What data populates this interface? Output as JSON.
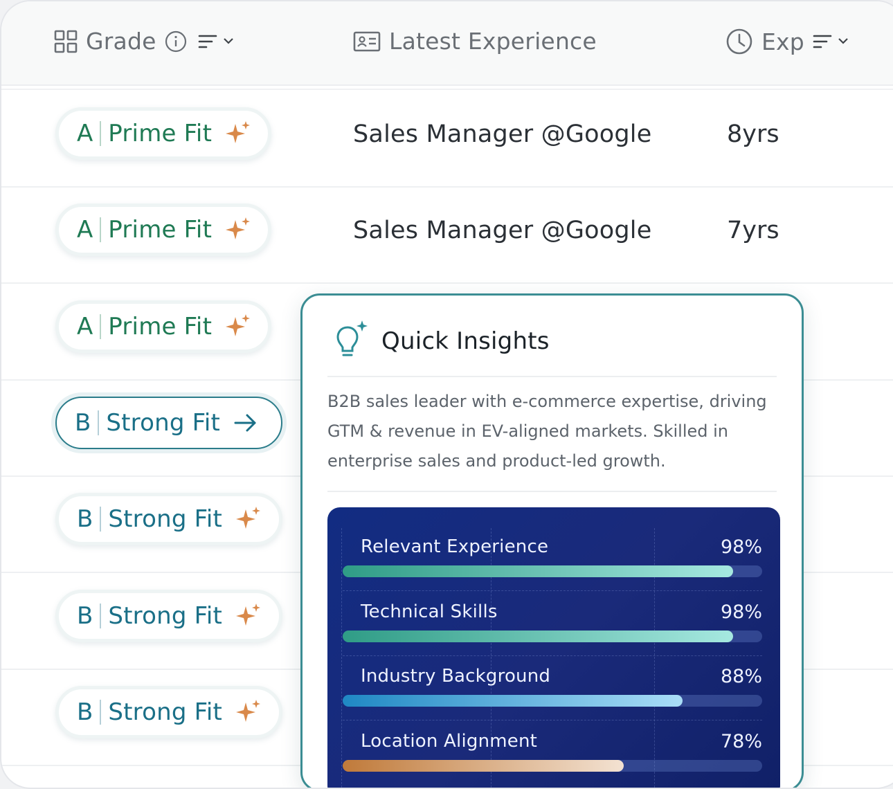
{
  "header": {
    "grade_label": "Grade",
    "experience_label": "Latest Experience",
    "exp_label": "Exp"
  },
  "rows": [
    {
      "grade": "A",
      "fit": "Prime Fit",
      "type": "prime",
      "icon": "sparkle-icon",
      "role": "Sales Manager @Google",
      "years": "8yrs"
    },
    {
      "grade": "A",
      "fit": "Prime Fit",
      "type": "prime",
      "icon": "sparkle-icon",
      "role": "Sales Manager @Google",
      "years": "7yrs"
    },
    {
      "grade": "A",
      "fit": "Prime Fit",
      "type": "prime",
      "icon": "sparkle-icon",
      "role": "",
      "years": ""
    },
    {
      "grade": "B",
      "fit": "Strong Fit",
      "type": "strong",
      "icon": "arrow-right-icon",
      "active": true,
      "role": "",
      "years": ""
    },
    {
      "grade": "B",
      "fit": "Strong Fit",
      "type": "strong",
      "icon": "sparkle-icon",
      "role": "",
      "years": ""
    },
    {
      "grade": "B",
      "fit": "Strong Fit",
      "type": "strong",
      "icon": "sparkle-icon",
      "role": "",
      "years": ""
    },
    {
      "grade": "B",
      "fit": "Strong Fit",
      "type": "strong",
      "icon": "sparkle-icon",
      "role": "",
      "years": ""
    }
  ],
  "insights": {
    "title": "Quick Insights",
    "summary": "B2B sales leader with e-commerce expertise, driving GTM & revenue in EV-aligned markets. Skilled in enterprise sales and product-led growth.",
    "metrics": [
      {
        "label": "Relevant Experience",
        "value": "98%",
        "level": 0.93,
        "colors": [
          "#2f9c86",
          "#a6e8e0"
        ]
      },
      {
        "label": "Technical Skills",
        "value": "98%",
        "level": 0.93,
        "colors": [
          "#2f9c86",
          "#a6e8e0"
        ]
      },
      {
        "label": "Industry Background",
        "value": "88%",
        "level": 0.81,
        "colors": [
          "#1f88c4",
          "#a9ddf7"
        ]
      },
      {
        "label": "Location Alignment",
        "value": "78%",
        "level": 0.67,
        "colors": [
          "#c07a3a",
          "#f3e2d2"
        ]
      }
    ]
  },
  "colors": {
    "prime_green": "#1f7a54",
    "strong_teal": "#1a6f87",
    "sparkle": "#d9894a",
    "popup_border": "#3b8d93",
    "panel_navy": "#15297c"
  }
}
